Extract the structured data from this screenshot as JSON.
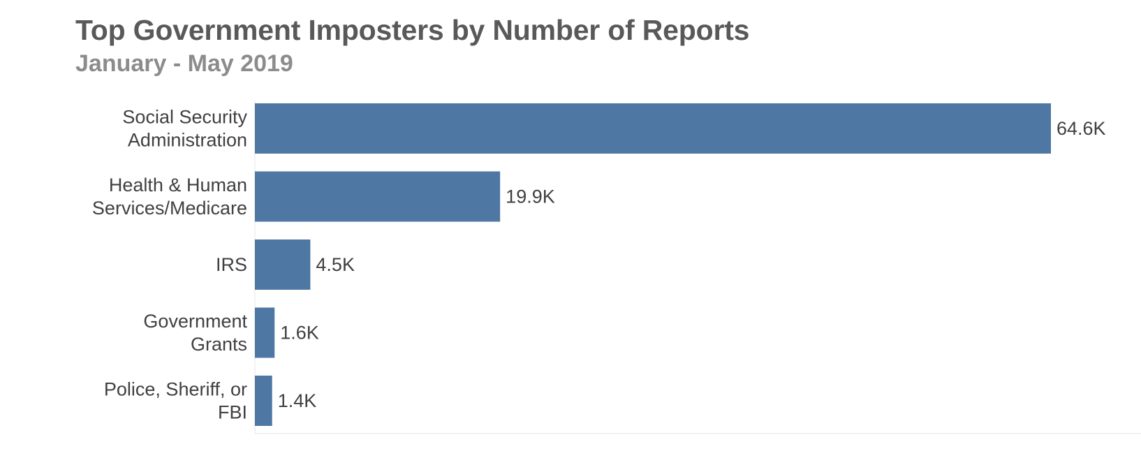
{
  "chart_data": {
    "type": "bar",
    "orientation": "horizontal",
    "title": "Top Government Imposters by Number of Reports",
    "subtitle": "January - May 2019",
    "categories": [
      "Social Security Administration",
      "Health & Human Services/Medicare",
      "IRS",
      "Government Grants",
      "Police, Sheriff, or FBI"
    ],
    "category_label_lines": [
      [
        "Social Security",
        "Administration"
      ],
      [
        "Health & Human",
        "Services/Medicare"
      ],
      [
        "IRS"
      ],
      [
        "Government",
        "Grants"
      ],
      [
        "Police, Sheriff, or",
        "FBI"
      ]
    ],
    "values": [
      64600,
      19900,
      4500,
      1600,
      1400
    ],
    "data_labels": [
      "64.6K",
      "19.9K",
      "4.5K",
      "1.6K",
      "1.4K"
    ],
    "xlabel": "",
    "ylabel": "",
    "xlim": [
      0,
      64600
    ],
    "grid": false,
    "legend": "none",
    "colors": {
      "bar": "#4e77a3",
      "title": "#595959",
      "subtitle": "#8c8c8c",
      "label": "#404040",
      "baseline": "#e6e6e6"
    }
  }
}
